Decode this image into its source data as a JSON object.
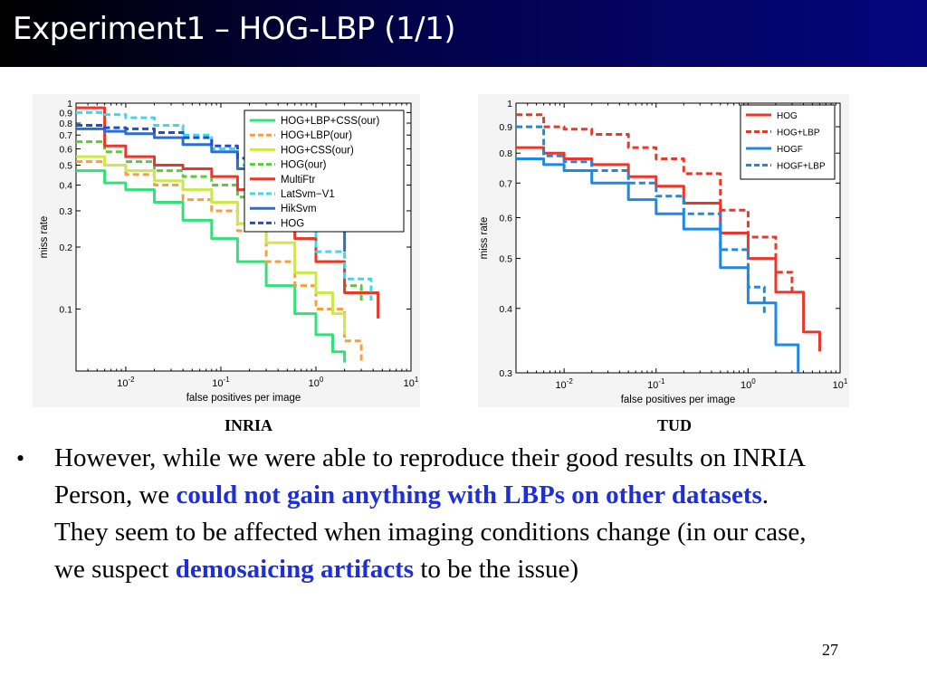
{
  "slide": {
    "title": "Experiment1 – HOG-LBP (1/1)",
    "bullet": {
      "marker": "•",
      "seg1": "However, while we were able to reproduce their good results on INRIA Person, we ",
      "hl1": "could not gain anything with LBPs on other datasets",
      "seg2": ". They seem to be affected when imaging conditions change (in our case, we suspect ",
      "hl2": "demosaicing artifacts",
      "seg3": " to be the issue)"
    },
    "page_number": "27",
    "accent_color": "#1f2fd6"
  },
  "chart_data": [
    {
      "type": "line",
      "caption": "INRIA",
      "xlabel": "false positives per image",
      "ylabel": "miss rate",
      "xscale": "log",
      "yscale": "log",
      "xlim": [
        0.003,
        10
      ],
      "ylim": [
        0.05,
        1
      ],
      "xticks": [
        0.01,
        0.1,
        1,
        10
      ],
      "yticks": [
        0.1,
        0.2,
        0.3,
        0.4,
        0.5,
        0.6,
        0.7,
        0.8,
        0.9,
        1
      ],
      "ytick_labels": [
        "0.1",
        "0.2",
        "0.3",
        "0.4",
        "0.5",
        "0.6",
        "0.7",
        "0.8",
        "0.9",
        "1"
      ],
      "legend_position": "top-right",
      "series": [
        {
          "name": "HOG+LBP+CSS(our)",
          "color": "#33e07a",
          "dash": "solid",
          "x": [
            0.003,
            0.006,
            0.01,
            0.02,
            0.04,
            0.08,
            0.15,
            0.3,
            0.6,
            1,
            1.5,
            2
          ],
          "y": [
            0.47,
            0.41,
            0.38,
            0.33,
            0.27,
            0.22,
            0.17,
            0.13,
            0.095,
            0.075,
            0.062,
            0.055
          ]
        },
        {
          "name": "HOG+LBP(our)",
          "color": "#f5a040",
          "dash": "dash",
          "x": [
            0.003,
            0.006,
            0.01,
            0.02,
            0.04,
            0.08,
            0.15,
            0.3,
            0.6,
            1,
            2,
            3
          ],
          "y": [
            0.52,
            0.5,
            0.45,
            0.4,
            0.34,
            0.3,
            0.24,
            0.17,
            0.13,
            0.1,
            0.07,
            0.055
          ]
        },
        {
          "name": "HOG+CSS(our)",
          "color": "#cde84a",
          "dash": "solid",
          "x": [
            0.003,
            0.006,
            0.01,
            0.02,
            0.04,
            0.08,
            0.15,
            0.3,
            0.6,
            1,
            1.5,
            2
          ],
          "y": [
            0.55,
            0.5,
            0.47,
            0.42,
            0.38,
            0.33,
            0.26,
            0.21,
            0.15,
            0.12,
            0.095,
            0.075
          ]
        },
        {
          "name": "HOG(our)",
          "color": "#5ec93a",
          "dash": "dash",
          "x": [
            0.003,
            0.006,
            0.01,
            0.02,
            0.04,
            0.08,
            0.15,
            0.3,
            0.6,
            1,
            2,
            3
          ],
          "y": [
            0.65,
            0.58,
            0.52,
            0.47,
            0.44,
            0.4,
            0.35,
            0.3,
            0.22,
            0.17,
            0.13,
            0.11
          ]
        },
        {
          "name": "MultiFtr",
          "color": "#e8372b",
          "dash": "solid",
          "x": [
            0.003,
            0.006,
            0.01,
            0.02,
            0.04,
            0.08,
            0.15,
            0.3,
            0.6,
            1,
            2,
            4.5
          ],
          "y": [
            0.95,
            0.62,
            0.55,
            0.5,
            0.48,
            0.44,
            0.38,
            0.3,
            0.22,
            0.17,
            0.12,
            0.09
          ]
        },
        {
          "name": "LatSvm−V1",
          "color": "#33ddf0",
          "dash": "dash",
          "x": [
            0.003,
            0.006,
            0.01,
            0.02,
            0.04,
            0.08,
            0.15,
            0.3,
            0.6,
            1,
            2,
            3.8
          ],
          "y": [
            0.9,
            0.88,
            0.85,
            0.78,
            0.7,
            0.6,
            0.5,
            0.36,
            0.25,
            0.19,
            0.14,
            0.11
          ]
        },
        {
          "name": "HikSvm",
          "color": "#2a6fd2",
          "dash": "solid",
          "x": [
            0.003,
            0.006,
            0.01,
            0.02,
            0.04,
            0.08,
            0.15,
            0.3,
            0.6,
            1,
            2
          ],
          "y": [
            0.75,
            0.73,
            0.71,
            0.68,
            0.63,
            0.58,
            0.48,
            0.39,
            0.3,
            0.25,
            0.19
          ]
        },
        {
          "name": "HOG",
          "color": "#1c4fd4",
          "dash": "dash",
          "x": [
            0.003,
            0.006,
            0.01,
            0.02,
            0.04,
            0.08,
            0.15,
            0.3,
            0.6,
            1
          ],
          "y": [
            0.78,
            0.76,
            0.75,
            0.72,
            0.68,
            0.62,
            0.54,
            0.4,
            0.3,
            0.24
          ]
        }
      ]
    },
    {
      "type": "line",
      "caption": "TUD",
      "xlabel": "false positives per image",
      "ylabel": "miss rate",
      "xscale": "log",
      "yscale": "log",
      "xlim": [
        0.003,
        10
      ],
      "ylim": [
        0.3,
        1
      ],
      "xticks": [
        0.01,
        0.1,
        1,
        10
      ],
      "yticks": [
        0.3,
        0.4,
        0.5,
        0.6,
        0.7,
        0.8,
        0.9,
        1
      ],
      "ytick_labels": [
        "0.3",
        "0.4",
        "0.5",
        "0.6",
        "0.7",
        "0.8",
        "0.9",
        "1"
      ],
      "legend_position": "top-right",
      "series": [
        {
          "name": "HOG",
          "color": "#e8372b",
          "dash": "solid",
          "x": [
            0.003,
            0.006,
            0.01,
            0.02,
            0.05,
            0.1,
            0.2,
            0.5,
            1,
            2,
            4,
            6
          ],
          "y": [
            0.82,
            0.8,
            0.78,
            0.76,
            0.72,
            0.69,
            0.64,
            0.56,
            0.5,
            0.43,
            0.36,
            0.33
          ]
        },
        {
          "name": "HOG+LBP",
          "color": "#e8372b",
          "dash": "dash",
          "x": [
            0.003,
            0.006,
            0.01,
            0.02,
            0.05,
            0.1,
            0.2,
            0.5,
            1,
            2,
            3
          ],
          "y": [
            0.95,
            0.9,
            0.89,
            0.87,
            0.82,
            0.78,
            0.73,
            0.62,
            0.55,
            0.47,
            0.43
          ]
        },
        {
          "name": "HOGF",
          "color": "#1e88e5",
          "dash": "solid",
          "x": [
            0.003,
            0.006,
            0.01,
            0.02,
            0.05,
            0.1,
            0.2,
            0.5,
            1,
            2,
            3.5
          ],
          "y": [
            0.78,
            0.76,
            0.74,
            0.7,
            0.65,
            0.61,
            0.57,
            0.48,
            0.41,
            0.34,
            0.3
          ]
        },
        {
          "name": "HOGF+LBP",
          "color": "#1e88e5",
          "dash": "dash",
          "x": [
            0.003,
            0.006,
            0.006,
            0.01,
            0.02,
            0.05,
            0.1,
            0.2,
            0.5,
            1,
            1.5
          ],
          "y": [
            0.9,
            0.9,
            0.79,
            0.77,
            0.74,
            0.7,
            0.66,
            0.61,
            0.52,
            0.44,
            0.39
          ]
        }
      ]
    }
  ]
}
